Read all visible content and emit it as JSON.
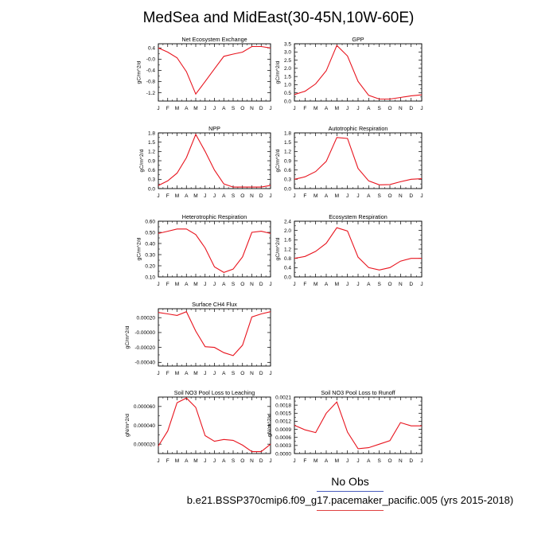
{
  "figure": {
    "title": "MedSea and MidEast(30-45N,10W-60E)",
    "legend_title": "No Obs",
    "run_label": "b.e21.BSSP370cmip6.f09_g17.pacemaker_pacific.005 (yrs 2015-2018)",
    "line_color": "#e8141e"
  },
  "chart_data": [
    {
      "type": "line",
      "title": "Net Ecosystem Exchange",
      "ylabel": "gC/m^2/d",
      "x": [
        "J",
        "F",
        "M",
        "A",
        "M",
        "J",
        "J",
        "A",
        "S",
        "O",
        "N",
        "D",
        "J"
      ],
      "ylim": [
        -1.5,
        0.55
      ],
      "yticks": [
        0.4,
        -0.0,
        -0.4,
        -0.8,
        -1.2
      ],
      "yticklabels": [
        "0.4",
        "-0.0",
        "-0.4",
        "-0.8",
        "-1.2"
      ],
      "series": [
        {
          "values": [
            0.4,
            0.25,
            0.05,
            -0.45,
            -1.25,
            -0.8,
            -0.35,
            0.1,
            0.18,
            0.25,
            0.45,
            0.45,
            0.4
          ]
        }
      ]
    },
    {
      "type": "line",
      "title": "GPP",
      "ylabel": "gC/m^2/d",
      "x": [
        "J",
        "F",
        "M",
        "A",
        "M",
        "J",
        "J",
        "A",
        "S",
        "O",
        "N",
        "D",
        "J"
      ],
      "ylim": [
        0,
        3.5
      ],
      "yticks": [
        0.0,
        0.5,
        1.0,
        1.5,
        2.0,
        2.5,
        3.0,
        3.5
      ],
      "yticklabels": [
        "0.0",
        "0.5",
        "1.0",
        "1.5",
        "2.0",
        "2.5",
        "3.0",
        "3.5"
      ],
      "series": [
        {
          "values": [
            0.4,
            0.6,
            1.05,
            1.85,
            3.4,
            2.75,
            1.2,
            0.35,
            0.12,
            0.12,
            0.22,
            0.32,
            0.38
          ]
        }
      ]
    },
    {
      "type": "line",
      "title": "NPP",
      "ylabel": "gC/m^2/d",
      "x": [
        "J",
        "F",
        "M",
        "A",
        "M",
        "J",
        "J",
        "A",
        "S",
        "O",
        "N",
        "D",
        "J"
      ],
      "ylim": [
        0,
        1.8
      ],
      "yticks": [
        0.0,
        0.3,
        0.6,
        0.9,
        1.2,
        1.5,
        1.8
      ],
      "yticklabels": [
        "0.0",
        "0.3",
        "0.6",
        "0.9",
        "1.2",
        "1.5",
        "1.8"
      ],
      "series": [
        {
          "values": [
            0.1,
            0.25,
            0.5,
            1.0,
            1.75,
            1.2,
            0.6,
            0.15,
            0.05,
            0.05,
            0.05,
            0.05,
            0.1
          ]
        }
      ]
    },
    {
      "type": "line",
      "title": "Autotrophic Respiration",
      "ylabel": "gC/m^2/d",
      "x": [
        "J",
        "F",
        "M",
        "A",
        "M",
        "J",
        "J",
        "A",
        "S",
        "O",
        "N",
        "D",
        "J"
      ],
      "ylim": [
        0,
        1.8
      ],
      "yticks": [
        0.0,
        0.3,
        0.6,
        0.9,
        1.2,
        1.5,
        1.8
      ],
      "yticklabels": [
        "0.0",
        "0.3",
        "0.6",
        "0.9",
        "1.2",
        "1.5",
        "1.8"
      ],
      "series": [
        {
          "values": [
            0.3,
            0.38,
            0.55,
            0.88,
            1.65,
            1.62,
            0.65,
            0.25,
            0.12,
            0.13,
            0.22,
            0.3,
            0.32
          ]
        }
      ]
    },
    {
      "type": "line",
      "title": "Heterotrophic Respiration",
      "ylabel": "gC/m^2/d",
      "x": [
        "J",
        "F",
        "M",
        "A",
        "M",
        "J",
        "J",
        "A",
        "S",
        "O",
        "N",
        "D",
        "J"
      ],
      "ylim": [
        0.1,
        0.6
      ],
      "yticks": [
        0.1,
        0.2,
        0.3,
        0.4,
        0.5,
        0.6
      ],
      "yticklabels": [
        "0.10",
        "0.20",
        "0.30",
        "0.40",
        "0.50",
        "0.60"
      ],
      "series": [
        {
          "values": [
            0.49,
            0.51,
            0.53,
            0.53,
            0.48,
            0.36,
            0.19,
            0.14,
            0.17,
            0.28,
            0.5,
            0.51,
            0.49
          ]
        }
      ]
    },
    {
      "type": "line",
      "title": "Ecosystem Respiration",
      "ylabel": "gC/m^2/d",
      "x": [
        "J",
        "F",
        "M",
        "A",
        "M",
        "J",
        "J",
        "A",
        "S",
        "O",
        "N",
        "D",
        "J"
      ],
      "ylim": [
        0,
        2.4
      ],
      "yticks": [
        0.0,
        0.4,
        0.8,
        1.2,
        1.6,
        2.0,
        2.4
      ],
      "yticklabels": [
        "0.0",
        "0.4",
        "0.8",
        "1.2",
        "1.6",
        "2.0",
        "2.4"
      ],
      "series": [
        {
          "values": [
            0.8,
            0.88,
            1.1,
            1.45,
            2.12,
            1.98,
            0.85,
            0.4,
            0.3,
            0.4,
            0.68,
            0.8,
            0.8
          ]
        }
      ]
    },
    {
      "type": "line",
      "title": "Surface CH4 Flux",
      "ylabel": "gC/m^2/d",
      "x": [
        "J",
        "F",
        "M",
        "A",
        "M",
        "J",
        "J",
        "A",
        "S",
        "O",
        "N",
        "D",
        "J"
      ],
      "ylim": [
        -0.00045,
        0.00032
      ],
      "yticks": [
        0.0002,
        0.0,
        -0.0002,
        -0.0004
      ],
      "yticklabels": [
        "0.00020",
        "-0.00000",
        "-0.00020",
        "-0.00040"
      ],
      "series": [
        {
          "values": [
            0.00027,
            0.00025,
            0.00023,
            0.00028,
            2e-05,
            -0.00019,
            -0.0002,
            -0.00027,
            -0.00031,
            -0.00017,
            0.00021,
            0.00025,
            0.00028
          ]
        }
      ]
    },
    {
      "type": "line",
      "title": "Soil NO3 Pool Loss to Leaching",
      "ylabel": "gN/m^2/d",
      "x": [
        "J",
        "F",
        "M",
        "A",
        "M",
        "J",
        "J",
        "A",
        "S",
        "O",
        "N",
        "D",
        "J"
      ],
      "ylim": [
        1e-05,
        7e-05
      ],
      "yticks": [
        2e-05,
        4e-05,
        6e-05
      ],
      "yticklabels": [
        "0.000020",
        "0.000040",
        "0.000060"
      ],
      "series": [
        {
          "values": [
            1.8e-05,
            3.4e-05,
            6.4e-05,
            6.9e-05,
            5.9e-05,
            2.9e-05,
            2.3e-05,
            2.5e-05,
            2.4e-05,
            1.9e-05,
            1.2e-05,
            1.2e-05,
            2e-05
          ]
        }
      ]
    },
    {
      "type": "line",
      "title": "Soil NO3 Pool Loss to Runoff",
      "ylabel": "gN/m^2/d",
      "x": [
        "J",
        "F",
        "M",
        "A",
        "M",
        "J",
        "J",
        "A",
        "S",
        "O",
        "N",
        "D",
        "J"
      ],
      "ylim": [
        0,
        0.0021
      ],
      "yticks": [
        0.0,
        0.0003,
        0.0006,
        0.0009,
        0.0012,
        0.0015,
        0.0018,
        0.0021
      ],
      "yticklabels": [
        "0.0000",
        "0.0003",
        "0.0006",
        "0.0009",
        "0.0012",
        "0.0015",
        "0.0018",
        "0.0021"
      ],
      "series": [
        {
          "values": [
            0.00105,
            0.00088,
            0.00078,
            0.0015,
            0.00192,
            0.0008,
            0.00018,
            0.00022,
            0.00035,
            0.00048,
            0.00115,
            0.00103,
            0.00103
          ]
        }
      ]
    }
  ]
}
